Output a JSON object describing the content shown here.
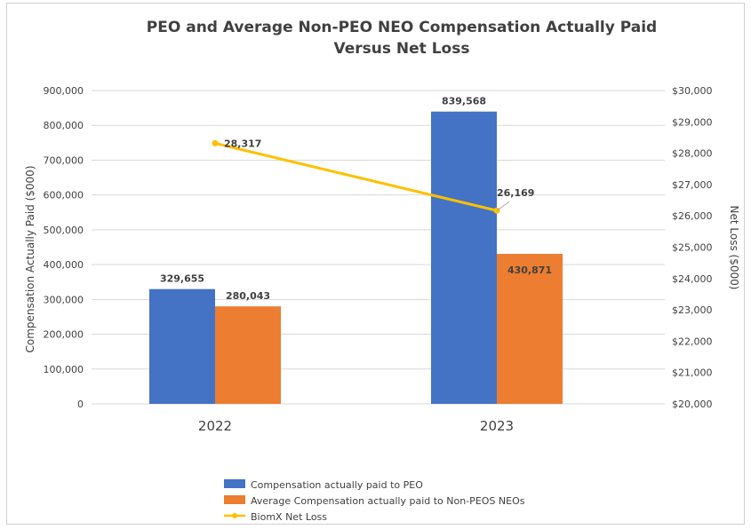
{
  "chart_data": {
    "type": "bar",
    "title_lines": [
      "PEO and Average Non-PEO NEO Compensation Actually Paid",
      "Versus Net Loss"
    ],
    "categories": [
      "2022",
      "2023"
    ],
    "ylabel": "Compensation Actually Paid ($000)",
    "ylim": [
      0,
      900000
    ],
    "yticks": [
      0,
      100000,
      200000,
      300000,
      400000,
      500000,
      600000,
      700000,
      800000,
      900000
    ],
    "ytick_labels": [
      "0",
      "100,000",
      "200,000",
      "300,000",
      "400,000",
      "500,000",
      "600,000",
      "700,000",
      "800,000",
      "900,000"
    ],
    "y2label": "Net Loss  ($000)",
    "y2lim": [
      20000,
      30000
    ],
    "y2ticks": [
      20000,
      21000,
      22000,
      23000,
      24000,
      25000,
      26000,
      27000,
      28000,
      29000,
      30000
    ],
    "y2tick_labels": [
      "$20,000",
      "$21,000",
      "$22,000",
      "$23,000",
      "$24,000",
      "$25,000",
      "$26,000",
      "$27,000",
      "$28,000",
      "$29,000",
      "$30,000"
    ],
    "grid": true,
    "legend_position": "bottom",
    "series": [
      {
        "name": "Compensation actually paid to PEO",
        "kind": "bar",
        "axis": "left",
        "color": "#4472c4",
        "values": [
          329655,
          839568
        ],
        "data_labels": [
          "329,655",
          "839,568"
        ]
      },
      {
        "name": "Average Compensation actually paid to Non-PEOS NEOs",
        "kind": "bar",
        "axis": "left",
        "color": "#ed7d31",
        "values": [
          280043,
          430871
        ],
        "data_labels": [
          "280,043",
          "430,871"
        ]
      },
      {
        "name": "BiomX Net Loss",
        "kind": "line",
        "axis": "right",
        "color": "#ffc000",
        "values": [
          28317,
          26169
        ],
        "data_labels": [
          "28,317",
          "26,169"
        ]
      }
    ]
  }
}
